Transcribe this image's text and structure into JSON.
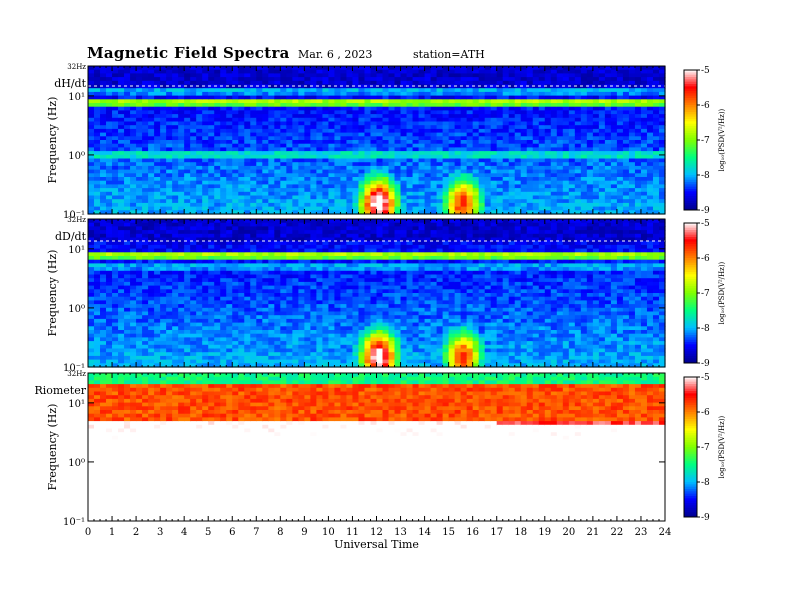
{
  "header": {
    "title": "Magnetic  Field  Spectra",
    "date": "Mar. 6  , 2023",
    "station": "station=ATH"
  },
  "colors": {
    "colormap": [
      "#00008b",
      "#0000ff",
      "#00bfff",
      "#00ff80",
      "#7fff00",
      "#ffff00",
      "#ff8000",
      "#ff0000",
      "#ffffff"
    ]
  },
  "chart_data": [
    {
      "type": "heatmap",
      "panel_label": "dH/dt",
      "top_label": "32Hz",
      "ylabel": "Frequency  (Hz)",
      "yscale": "log",
      "ylim": [
        0.1,
        32
      ],
      "yticks": [
        {
          "value": 10,
          "label": "10¹"
        },
        {
          "value": 1,
          "label": "10⁰"
        },
        {
          "value": 0.1,
          "label": "10⁻¹"
        }
      ],
      "xlim": [
        0,
        24
      ],
      "colorbar": {
        "label": "log₁₀(PSD(V²/Hz))",
        "range": [
          -9,
          -5
        ],
        "ticks": [
          -5,
          -6,
          -7,
          -8,
          -9
        ]
      },
      "bands": [
        {
          "freq": 20,
          "level": -8.6
        },
        {
          "freq": 12,
          "level": -7.9
        },
        {
          "freq": 8,
          "level": -6.8
        },
        {
          "freq": 1,
          "level": -7.6
        }
      ],
      "enhancements": [
        {
          "hour": 12.1,
          "freq": 0.15,
          "peak": -5.1
        },
        {
          "hour": 15.6,
          "freq": 0.15,
          "peak": -5.9
        }
      ]
    },
    {
      "type": "heatmap",
      "panel_label": "dD/dt",
      "top_label": "32Hz",
      "ylabel": "Frequency  (Hz)",
      "yscale": "log",
      "ylim": [
        0.1,
        32
      ],
      "yticks": [
        {
          "value": 10,
          "label": "10¹"
        },
        {
          "value": 1,
          "label": "10⁰"
        },
        {
          "value": 0.1,
          "label": "10⁻¹"
        }
      ],
      "xlim": [
        0,
        24
      ],
      "colorbar": {
        "label": "log₁₀(PSD(V²/Hz))",
        "range": [
          -9,
          -5
        ],
        "ticks": [
          -5,
          -6,
          -7,
          -8,
          -9
        ]
      },
      "bands": [
        {
          "freq": 20,
          "level": -8.6
        },
        {
          "freq": 8,
          "level": -6.8
        },
        {
          "freq": 5,
          "level": -7.9
        }
      ],
      "enhancements": [
        {
          "hour": 12.1,
          "freq": 0.15,
          "peak": -5.2
        },
        {
          "hour": 15.6,
          "freq": 0.15,
          "peak": -6.0
        }
      ]
    },
    {
      "type": "heatmap",
      "panel_label": "Riometer",
      "top_label": "32Hz",
      "ylabel": "Frequency  (Hz)",
      "yscale": "log",
      "ylim": [
        0.1,
        32
      ],
      "yticks": [
        {
          "value": 10,
          "label": "10¹"
        },
        {
          "value": 1,
          "label": "10⁰"
        },
        {
          "value": 0.1,
          "label": "10⁻¹"
        }
      ],
      "xlim": [
        0,
        24
      ],
      "xlabel": "Universal  Time",
      "xticks": [
        0,
        1,
        2,
        3,
        4,
        5,
        6,
        7,
        8,
        9,
        10,
        11,
        12,
        13,
        14,
        15,
        16,
        17,
        18,
        19,
        20,
        21,
        22,
        23,
        24
      ],
      "colorbar": {
        "label": "log₁₀(PSD(V²/Hz))",
        "range": [
          -9,
          -5
        ],
        "ticks": [
          -5,
          -6,
          -7,
          -8,
          -9
        ]
      },
      "bands": [
        {
          "freq": 12,
          "level": -5.8
        }
      ],
      "enhancements": [
        {
          "hour": 18,
          "freq": 12,
          "peak": -5.4
        }
      ]
    }
  ]
}
